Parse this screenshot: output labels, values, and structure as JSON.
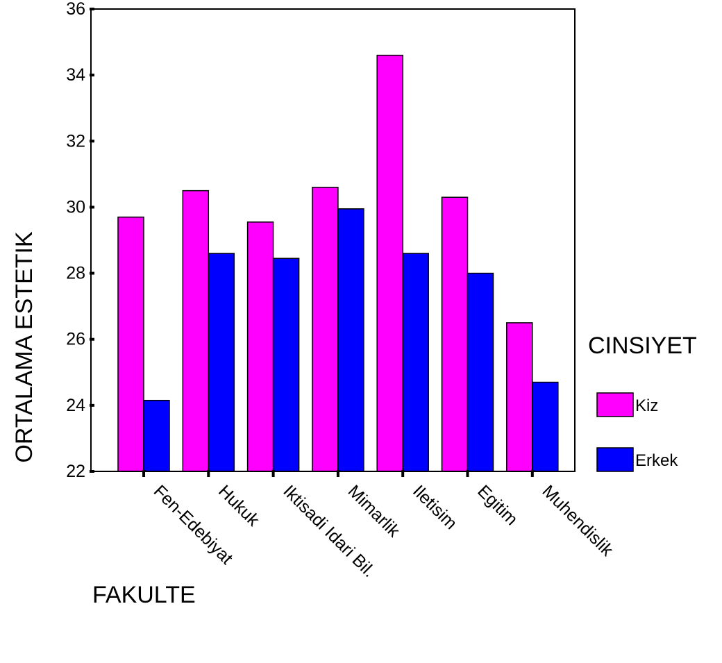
{
  "chart_data": {
    "type": "bar",
    "categories": [
      "Fen-Edebiyat",
      "Hukuk",
      "Iktisadi Idari Bil.",
      "Mimarlik",
      "Iletisim",
      "Egitim",
      "Muhendislik"
    ],
    "series": [
      {
        "name": "Kiz",
        "color": "#ff00ff",
        "values": [
          29.7,
          30.5,
          29.55,
          30.6,
          34.6,
          30.3,
          26.5
        ]
      },
      {
        "name": "Erkek",
        "color": "#0000ff",
        "values": [
          24.15,
          28.6,
          28.45,
          29.95,
          28.6,
          28.0,
          24.7
        ]
      }
    ],
    "title": "",
    "xlabel": "FAKULTE",
    "ylabel": "ORTALAMA ESTETIK",
    "ylim": [
      22,
      36
    ],
    "yticks": [
      "22",
      "24",
      "26",
      "28",
      "30",
      "32",
      "34",
      "36"
    ],
    "grid": false,
    "legend": {
      "title": "CINSIYET",
      "position": "right"
    }
  }
}
